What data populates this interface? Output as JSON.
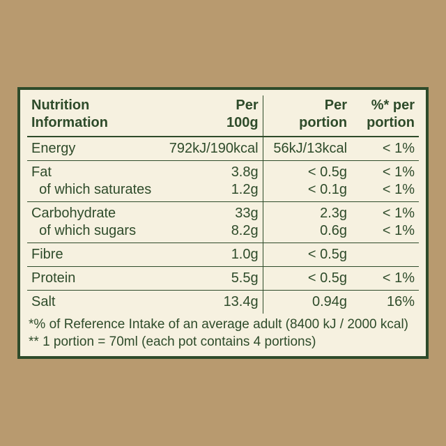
{
  "colors": {
    "page_bg": "#b89a6f",
    "panel_bg": "#f6f1e0",
    "border": "#2e4b2a",
    "text": "#2e4b2a"
  },
  "typography": {
    "header_fontsize_pt": 15,
    "body_fontsize_pt": 15,
    "font_family": "Arial"
  },
  "table": {
    "columns": [
      {
        "key": "label",
        "header": "Nutrition\nInformation",
        "align": "left",
        "width_pct": 31
      },
      {
        "key": "per100",
        "header": "Per\n100g",
        "align": "right",
        "width_pct": 28
      },
      {
        "key": "portion",
        "header": "Per\nportion",
        "align": "right",
        "width_pct": 23
      },
      {
        "key": "pct",
        "header": "%* per\nportion",
        "align": "right",
        "width_pct": 18
      }
    ],
    "row_border_color": "#2e4b2a",
    "rows": [
      {
        "label": "Energy",
        "per100": "792kJ/190kcal",
        "portion": "56kJ/13kcal",
        "pct": "< 1%",
        "sep": true
      },
      {
        "label": "Fat\n  of which saturates",
        "per100": "3.8g\n1.2g",
        "portion": "< 0.5g\n< 0.1g",
        "pct": "< 1%\n< 1%",
        "sep": true
      },
      {
        "label": "Carbohydrate\n  of which sugars",
        "per100": "33g\n8.2g",
        "portion": "2.3g\n0.6g",
        "pct": "< 1%\n< 1%",
        "sep": true
      },
      {
        "label": "Fibre",
        "per100": "1.0g",
        "portion": "< 0.5g",
        "pct": "",
        "sep": true
      },
      {
        "label": "Protein",
        "per100": "5.5g",
        "portion": "< 0.5g",
        "pct": "< 1%",
        "sep": true
      },
      {
        "label": "Salt",
        "per100": "13.4g",
        "portion": "0.94g",
        "pct": "16%",
        "sep": true
      }
    ]
  },
  "footnotes": {
    "line1": "*% of Reference Intake of an average adult (8400 kJ / 2000 kcal)",
    "line2": "** 1 portion = 70ml (each pot contains 4 portions)"
  }
}
